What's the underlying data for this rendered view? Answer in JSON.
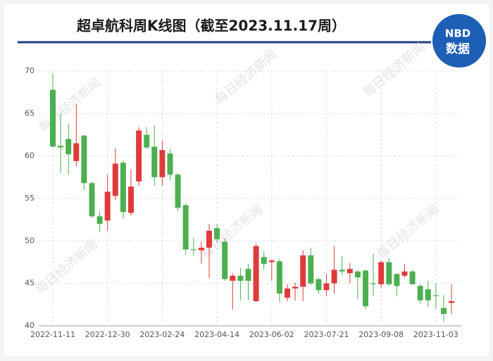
{
  "chart_data": {
    "type": "candlestick",
    "title": "超卓航科周K线图（截至2023.11.17周）",
    "logo": {
      "top": "NBD",
      "bottom": "数据"
    },
    "watermark": "每日经济新闻",
    "categories": [
      "2022-11-11",
      null,
      null,
      null,
      null,
      null,
      null,
      "2022-12-30",
      null,
      null,
      null,
      null,
      null,
      null,
      "2023-02-24",
      null,
      null,
      null,
      null,
      null,
      null,
      "2023-04-14",
      null,
      null,
      null,
      null,
      null,
      null,
      "2023-06-02",
      null,
      null,
      null,
      null,
      null,
      null,
      "2023-07-21",
      null,
      null,
      null,
      null,
      null,
      null,
      "2023-09-08",
      null,
      null,
      null,
      null,
      null,
      null,
      "2023-11-03",
      null,
      null
    ],
    "open": [
      67.8,
      61.2,
      62.0,
      59.4,
      62.4,
      56.8,
      52.9,
      52.4,
      55.3,
      59.2,
      53.3,
      57.0,
      62.5,
      61.1,
      57.5,
      60.3,
      57.8,
      54.2,
      49.0,
      48.9,
      49.2,
      51.5,
      49.9,
      45.3,
      45.9,
      46.7,
      42.9,
      48.1,
      47.5,
      47.6,
      43.3,
      44.4,
      44.6,
      48.3,
      45.5,
      44.2,
      45.0,
      46.6,
      46.2,
      46.4,
      46.5,
      45.0,
      44.9,
      47.5,
      46.1,
      45.9,
      46.4,
      44.7,
      44.3,
      43.6,
      42.1,
      42.7
    ],
    "high": [
      69.7,
      65.0,
      63.8,
      66.1,
      62.5,
      57.0,
      53.5,
      57.8,
      60.9,
      59.5,
      58.4,
      63.4,
      63.4,
      63.6,
      61.8,
      60.8,
      58.0,
      54.4,
      50.4,
      49.9,
      52.0,
      52.0,
      50.3,
      46.2,
      46.8,
      47.3,
      49.7,
      48.8,
      47.8,
      47.9,
      44.9,
      45.1,
      48.9,
      49.2,
      45.7,
      46.1,
      49.4,
      48.2,
      47.4,
      46.6,
      46.6,
      48.5,
      47.7,
      48.0,
      46.2,
      47.3,
      46.6,
      44.9,
      45.3,
      45.0,
      43.6,
      44.9
    ],
    "low": [
      61.0,
      58.0,
      57.8,
      58.8,
      56.0,
      52.7,
      51.0,
      51.2,
      54.8,
      52.6,
      53.0,
      56.5,
      60.8,
      56.5,
      56.5,
      57.2,
      53.5,
      48.4,
      48.3,
      47.3,
      45.6,
      49.8,
      45.3,
      41.9,
      43.0,
      43.0,
      42.8,
      46.6,
      45.3,
      42.8,
      42.9,
      43.0,
      42.9,
      44.8,
      43.8,
      43.5,
      43.8,
      46.0,
      45.0,
      43.1,
      42.0,
      43.5,
      44.5,
      44.7,
      43.5,
      45.7,
      44.8,
      42.6,
      42.2,
      42.0,
      40.5,
      41.4
    ],
    "close": [
      61.1,
      61.0,
      60.2,
      61.5,
      56.8,
      52.9,
      52.0,
      55.8,
      59.1,
      53.4,
      56.4,
      63.0,
      61.0,
      57.5,
      60.7,
      57.8,
      53.9,
      49.0,
      48.9,
      49.2,
      51.2,
      50.2,
      45.5,
      45.9,
      45.3,
      45.3,
      49.4,
      47.3,
      47.7,
      43.8,
      44.4,
      44.6,
      48.3,
      45.0,
      44.2,
      45.0,
      46.6,
      46.4,
      46.7,
      45.7,
      42.3,
      44.9,
      47.5,
      44.9,
      44.7,
      46.4,
      44.9,
      43.0,
      43.0,
      43.5,
      41.4,
      42.9
    ],
    "up_color": "#e03b3b",
    "down_color": "#4caf50",
    "ylim": [
      40,
      70
    ],
    "yticks": [
      40,
      45,
      50,
      55,
      60,
      65,
      70
    ],
    "grid": true
  }
}
